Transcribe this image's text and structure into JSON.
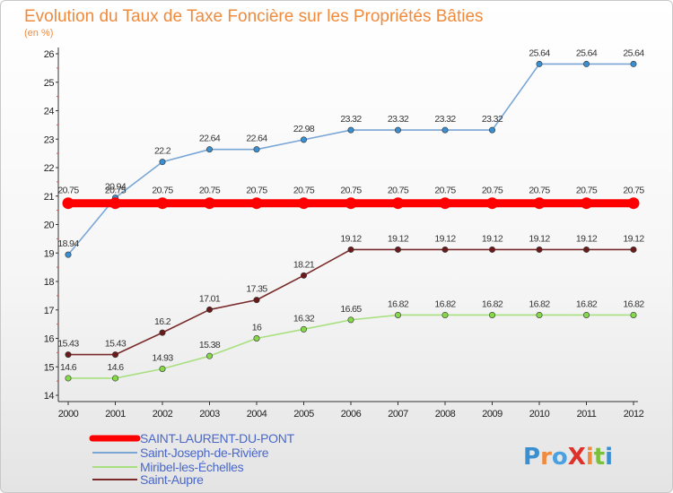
{
  "chart_data": {
    "type": "line",
    "title": "Evolution du Taux de Taxe Foncière sur les Propriétés Bâties",
    "subtitle": "(en %)",
    "x": [
      "2000",
      "2001",
      "2002",
      "2003",
      "2004",
      "2005",
      "2006",
      "2007",
      "2008",
      "2009",
      "2010",
      "2011",
      "2012"
    ],
    "yticks": [
      "14",
      "15",
      "16",
      "17",
      "18",
      "19",
      "20",
      "21",
      "22",
      "23",
      "24",
      "25",
      "26"
    ],
    "ylim": [
      14,
      26
    ],
    "grid": false,
    "legend_position": "bottom-left",
    "series": [
      {
        "name": "SAINT-LAURENT-DU-PONT",
        "color": "#ff0000",
        "values": [
          20.75,
          20.75,
          20.75,
          20.75,
          20.75,
          20.75,
          20.75,
          20.75,
          20.75,
          20.75,
          20.75,
          20.75,
          20.75
        ],
        "labels": [
          "20.75",
          "20.75",
          "20.75",
          "20.75",
          "20.75",
          "20.75",
          "20.75",
          "20.75",
          "20.75",
          "20.75",
          "20.75",
          "20.75",
          "20.75"
        ]
      },
      {
        "name": "Saint-Joseph-de-Rivière",
        "color": "#7aa6d6",
        "marker": "#3a8fd0",
        "values": [
          18.94,
          20.94,
          22.2,
          22.64,
          22.64,
          22.98,
          23.32,
          23.32,
          23.32,
          23.32,
          25.64,
          25.64,
          25.64
        ],
        "labels": [
          "18.94",
          "20.94",
          "22.2",
          "22.64",
          "22.64",
          "22.98",
          "23.32",
          "23.32",
          "23.32",
          "23.32",
          "25.64",
          "25.64",
          "25.64"
        ]
      },
      {
        "name": "Miribel-les-Échelles",
        "color": "#a8e080",
        "marker": "#86d84a",
        "values": [
          14.6,
          14.6,
          14.93,
          15.38,
          16,
          16.32,
          16.65,
          16.82,
          16.82,
          16.82,
          16.82,
          16.82,
          16.82
        ],
        "labels": [
          "14.6",
          "14.6",
          "14.93",
          "15.38",
          "16",
          "16.32",
          "16.65",
          "16.82",
          "16.82",
          "16.82",
          "16.82",
          "16.82",
          "16.82"
        ]
      },
      {
        "name": "Saint-Aupre",
        "color": "#7a2a2a",
        "marker": "#6a1a1a",
        "values": [
          15.43,
          15.43,
          16.2,
          17.01,
          17.35,
          18.21,
          19.12,
          19.12,
          19.12,
          19.12,
          19.12,
          19.12,
          19.12
        ],
        "labels": [
          "15.43",
          "15.43",
          "16.2",
          "17.01",
          "17.35",
          "18.21",
          "19.12",
          "19.12",
          "19.12",
          "19.12",
          "19.12",
          "19.12",
          "19.12"
        ]
      }
    ]
  },
  "logo": {
    "text": "ProXiti"
  }
}
